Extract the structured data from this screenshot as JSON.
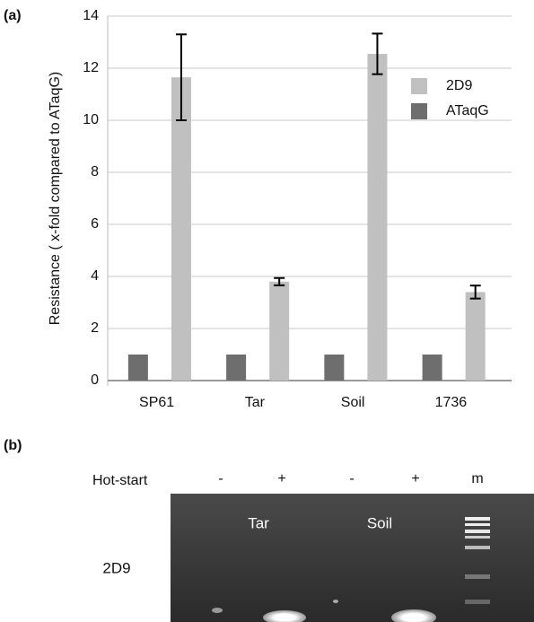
{
  "chart_data": {
    "type": "bar",
    "panel_label": "(a)",
    "y_label": "Resistance ( x-fold compared to ATaqG)",
    "categories": [
      "SP61",
      "Tar",
      "Soil",
      "1736"
    ],
    "series": [
      {
        "name": "2D9",
        "color": "#c0c0c0",
        "values": [
          11.65,
          3.8,
          12.55,
          3.4
        ],
        "errors": [
          1.65,
          0.14,
          0.78,
          0.25
        ]
      },
      {
        "name": "ATaqG",
        "color": "#6e6e6e",
        "values": [
          1,
          1,
          1,
          1
        ]
      }
    ],
    "ylim": [
      0,
      14
    ],
    "yticks": [
      0,
      2,
      4,
      6,
      8,
      10,
      12,
      14
    ],
    "grid": true
  },
  "panel_b": {
    "label": "(b)",
    "row_label": "Hot-start",
    "lanes": [
      "-",
      "+",
      "-",
      "+",
      "m"
    ],
    "groups": [
      "Tar",
      "Soil"
    ],
    "sample": "2D9"
  }
}
